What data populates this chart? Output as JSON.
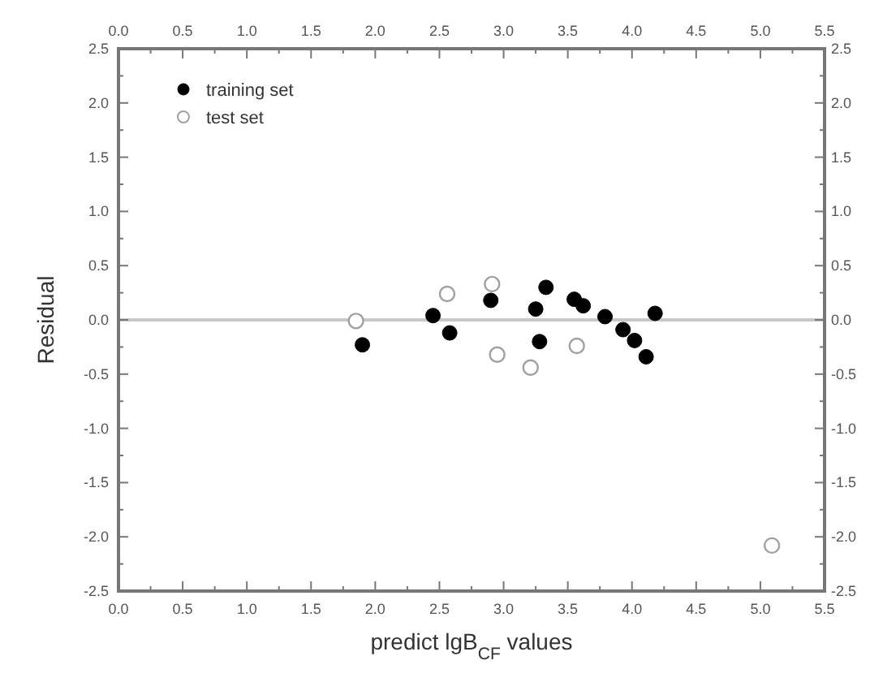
{
  "chart_data": {
    "type": "scatter",
    "xlabel": "predict lgB$_{CF}$ values",
    "ylabel": "Residual",
    "xlim": [
      0,
      5.5
    ],
    "ylim": [
      -2.5,
      2.5
    ],
    "xticks": [
      {
        "value": 0,
        "label": "0.0"
      },
      {
        "value": 0.25,
        "label": null
      },
      0.5,
      {
        "value": 0.75,
        "label": null
      },
      {
        "value": 1,
        "label": "1.0"
      },
      {
        "value": 1.25,
        "label": null
      },
      1.5,
      {
        "value": 1.75,
        "label": null
      },
      {
        "value": 2,
        "label": "2.0"
      },
      {
        "value": 2.25,
        "label": null
      },
      2.5,
      {
        "value": 2.75,
        "label": null
      },
      {
        "value": 3,
        "label": "3.0"
      },
      {
        "value": 3.25,
        "label": null
      },
      3.5,
      {
        "value": 3.75,
        "label": null
      },
      {
        "value": 4,
        "label": "4.0"
      },
      {
        "value": 4.25,
        "label": null
      },
      4.5,
      {
        "value": 4.75,
        "label": null
      },
      {
        "value": 5,
        "label": "5.0"
      },
      {
        "value": 5.25,
        "label": null
      },
      5.5
    ],
    "x2lim": [
      0,
      5.5
    ],
    "x2ticks": [
      {
        "value": 0,
        "label": "0.0"
      },
      {
        "value": 0.25,
        "label": null
      },
      0.5,
      {
        "value": 0.75,
        "label": null
      },
      {
        "value": 1,
        "label": "1.0"
      },
      {
        "value": 1.25,
        "label": null
      },
      1.5,
      {
        "value": 1.75,
        "label": null
      },
      {
        "value": 2,
        "label": "2.0"
      },
      {
        "value": 2.25,
        "label": null
      },
      2.5,
      {
        "value": 2.75,
        "label": null
      },
      {
        "value": 3,
        "label": "3.0"
      },
      {
        "value": 3.25,
        "label": null
      },
      3.5,
      {
        "value": 3.75,
        "label": null
      },
      {
        "value": 4,
        "label": "4.0"
      },
      {
        "value": 4.25,
        "label": null
      },
      4.5,
      {
        "value": 4.75,
        "label": null
      },
      {
        "value": 5,
        "label": "5.0"
      },
      {
        "value": 5.25,
        "label": null
      },
      5.5
    ],
    "yticks": [
      -2.5,
      {
        "value": -2.25,
        "label": null
      },
      {
        "value": -2,
        "label": "-2.0"
      },
      {
        "value": -1.75,
        "label": null
      },
      -1.5,
      {
        "value": -1.25,
        "label": null
      },
      {
        "value": -1,
        "label": "-1.0"
      },
      {
        "value": -0.75,
        "label": null
      },
      -0.5,
      {
        "value": -0.25,
        "label": null
      },
      {
        "value": 0,
        "label": "0.0"
      },
      {
        "value": 0.25,
        "label": null
      },
      0.5,
      {
        "value": 0.75,
        "label": null
      },
      {
        "value": 1,
        "label": "1.0"
      },
      {
        "value": 1.25,
        "label": null
      },
      1.5,
      {
        "value": 1.75,
        "label": null
      },
      {
        "value": 2,
        "label": "2.0"
      },
      {
        "value": 2.25,
        "label": null
      },
      2.5
    ],
    "y2lim": [
      -2.5,
      2.5
    ],
    "y2ticks": [
      -2.5,
      {
        "value": -2.25,
        "label": null
      },
      {
        "value": -2,
        "label": "-2.0"
      },
      {
        "value": -1.75,
        "label": null
      },
      -1.5,
      {
        "value": -1.25,
        "label": null
      },
      {
        "value": -1,
        "label": "-1.0"
      },
      {
        "value": -0.75,
        "label": null
      },
      -0.5,
      {
        "value": -0.25,
        "label": null
      },
      {
        "value": 0,
        "label": "0.0"
      },
      {
        "value": 0.25,
        "label": null
      },
      0.5,
      {
        "value": 0.75,
        "label": null
      },
      {
        "value": 1,
        "label": "1.0"
      },
      {
        "value": 1.25,
        "label": null
      },
      1.5,
      {
        "value": 1.75,
        "label": null
      },
      {
        "value": 2,
        "label": "2.0"
      },
      {
        "value": 2.25,
        "label": null
      },
      2.5
    ],
    "grid": false,
    "legend": "top left",
    "marker": "circle",
    "ref_lines": [
      {
        "axis": "y",
        "value": 0,
        "color": "#c8c8c8"
      }
    ],
    "series": [
      {
        "name": "training set",
        "color": "#000000",
        "x": [
          1.9,
          2.45,
          2.58,
          2.9,
          3.25,
          3.33,
          3.28,
          3.55,
          3.62,
          3.79,
          3.93,
          4.02,
          4.11,
          4.18
        ],
        "values": [
          -0.23,
          0.04,
          -0.12,
          0.18,
          0.1,
          0.3,
          -0.2,
          0.19,
          0.13,
          0.03,
          -0.09,
          -0.19,
          -0.34,
          0.06
        ]
      },
      {
        "name": "test set",
        "color": "#a0a0a0",
        "x": [
          1.85,
          2.56,
          2.91,
          2.95,
          3.21,
          3.57,
          5.09
        ],
        "values": [
          -0.01,
          0.24,
          0.33,
          -0.32,
          -0.44,
          -0.24,
          -2.08
        ]
      }
    ]
  }
}
